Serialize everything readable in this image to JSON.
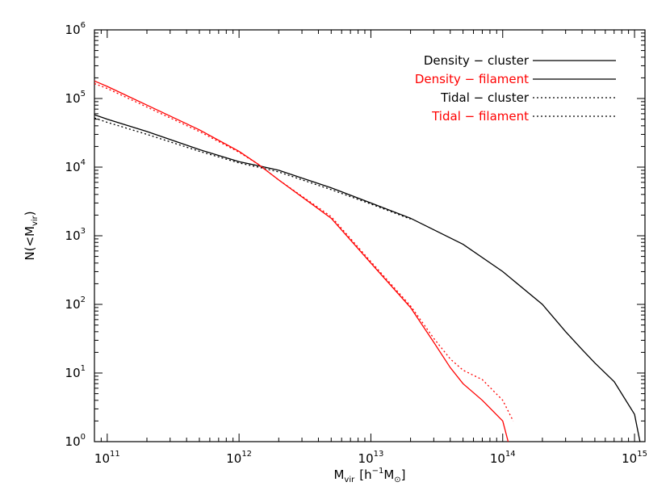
{
  "chart_data": {
    "type": "line",
    "title": "",
    "xlabel": {
      "base": "M",
      "sub": "vir",
      "units": "[h",
      "units_sup": "−1",
      "units_m": "M",
      "units_sub": "⊙",
      "units_close": "]"
    },
    "ylabel": {
      "prefix": "N(<M",
      "sub": "vir",
      "suffix": ")"
    },
    "xscale": "log",
    "yscale": "log",
    "xlim": [
      80000000000.0,
      1200000000000000.0
    ],
    "ylim": [
      1,
      1000000.0
    ],
    "grid": false,
    "legend_position": "top-right",
    "x_ticks": [
      {
        "base": "10",
        "exp": "11",
        "value": 100000000000.0
      },
      {
        "base": "10",
        "exp": "12",
        "value": 1000000000000.0
      },
      {
        "base": "10",
        "exp": "13",
        "value": 10000000000000.0
      },
      {
        "base": "10",
        "exp": "14",
        "value": 100000000000000.0
      },
      {
        "base": "10",
        "exp": "15",
        "value": 1000000000000000.0
      }
    ],
    "y_ticks": [
      {
        "base": "10",
        "exp": "0",
        "value": 1
      },
      {
        "base": "10",
        "exp": "1",
        "value": 10
      },
      {
        "base": "10",
        "exp": "2",
        "value": 100
      },
      {
        "base": "10",
        "exp": "3",
        "value": 1000
      },
      {
        "base": "10",
        "exp": "4",
        "value": 10000
      },
      {
        "base": "10",
        "exp": "5",
        "value": 100000
      },
      {
        "base": "10",
        "exp": "6",
        "value": 1000000
      }
    ],
    "series": [
      {
        "name": "Density − cluster",
        "color": "#000000",
        "dash": "solid",
        "x": [
          80000000000.0,
          100000000000.0,
          200000000000.0,
          500000000000.0,
          1000000000000.0,
          1400000000000.0,
          2000000000000.0,
          5000000000000.0,
          10000000000000.0,
          20000000000000.0,
          50000000000000.0,
          100000000000000.0,
          200000000000000.0,
          300000000000000.0,
          400000000000000.0,
          500000000000000.0,
          700000000000000.0,
          1000000000000000.0,
          1100000000000000.0
        ],
        "y": [
          58000,
          50000,
          33000,
          18000,
          12000,
          10500,
          9000,
          5000,
          3000,
          1800,
          750,
          300,
          100,
          40,
          22,
          14,
          7.5,
          2.5,
          1
        ]
      },
      {
        "name": "Density − filament",
        "color": "#ff0000",
        "dash": "solid",
        "x": [
          80000000000.0,
          100000000000.0,
          200000000000.0,
          500000000000.0,
          1000000000000.0,
          1400000000000.0,
          2000000000000.0,
          5000000000000.0,
          10000000000000.0,
          20000000000000.0,
          30000000000000.0,
          40000000000000.0,
          50000000000000.0,
          70000000000000.0,
          100000000000000.0,
          110000000000000.0
        ],
        "y": [
          180000,
          150000,
          80000,
          35000,
          17000,
          11000,
          6500,
          1800,
          400,
          90,
          28,
          12,
          7,
          4,
          2,
          1
        ]
      },
      {
        "name": "Tidal − cluster",
        "color": "#000000",
        "dash": "dotted",
        "x": [
          80000000000.0,
          100000000000.0,
          200000000000.0,
          500000000000.0,
          1000000000000.0,
          1400000000000.0,
          2000000000000.0,
          5000000000000.0,
          10000000000000.0,
          20000000000000.0
        ],
        "y": [
          52000,
          45000,
          30000,
          17000,
          11500,
          10000,
          8500,
          4700,
          2900,
          1750
        ]
      },
      {
        "name": "Tidal − filament",
        "color": "#ff0000",
        "dash": "dotted",
        "x": [
          80000000000.0,
          100000000000.0,
          200000000000.0,
          500000000000.0,
          1000000000000.0,
          1400000000000.0,
          2000000000000.0,
          5000000000000.0,
          10000000000000.0,
          20000000000000.0,
          30000000000000.0,
          40000000000000.0,
          50000000000000.0,
          70000000000000.0,
          100000000000000.0,
          120000000000000.0
        ],
        "y": [
          165000,
          140000,
          75000,
          33000,
          16500,
          11000,
          6500,
          1900,
          420,
          95,
          32,
          16,
          11,
          8,
          4,
          2
        ]
      }
    ]
  }
}
